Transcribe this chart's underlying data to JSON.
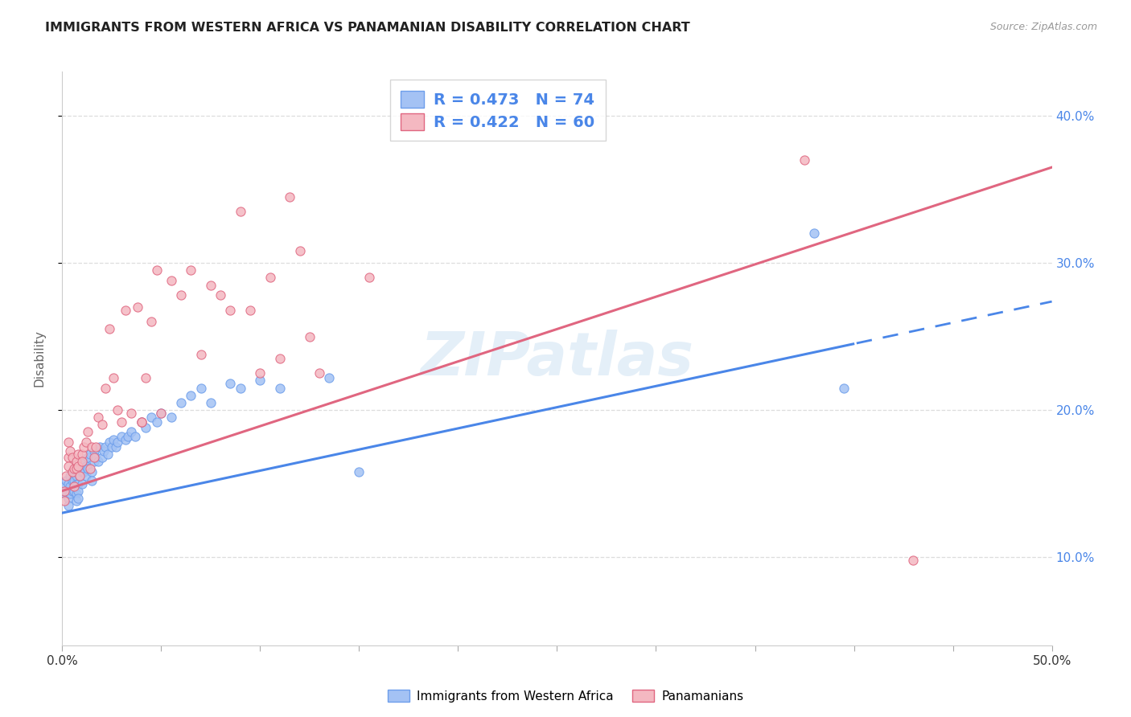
{
  "title": "IMMIGRANTS FROM WESTERN AFRICA VS PANAMANIAN DISABILITY CORRELATION CHART",
  "source": "Source: ZipAtlas.com",
  "ylabel": "Disability",
  "xmin": 0.0,
  "xmax": 0.5,
  "ymin": 0.04,
  "ymax": 0.43,
  "yticks": [
    0.1,
    0.2,
    0.3,
    0.4
  ],
  "ytick_labels": [
    "10.0%",
    "20.0%",
    "30.0%",
    "40.0%"
  ],
  "blue_R": 0.473,
  "blue_N": 74,
  "pink_R": 0.422,
  "pink_N": 60,
  "blue_color": "#a4c2f4",
  "pink_color": "#f4b8c1",
  "blue_edge_color": "#6d9eeb",
  "pink_edge_color": "#e06680",
  "blue_line_color": "#4a86e8",
  "pink_line_color": "#e06680",
  "right_axis_color": "#4a86e8",
  "watermark": "ZIPatlas",
  "blue_points_x": [
    0.001,
    0.001,
    0.002,
    0.002,
    0.003,
    0.003,
    0.003,
    0.004,
    0.004,
    0.004,
    0.005,
    0.005,
    0.005,
    0.006,
    0.006,
    0.006,
    0.006,
    0.007,
    0.007,
    0.007,
    0.007,
    0.008,
    0.008,
    0.008,
    0.009,
    0.009,
    0.01,
    0.01,
    0.011,
    0.011,
    0.012,
    0.012,
    0.013,
    0.013,
    0.014,
    0.015,
    0.015,
    0.016,
    0.016,
    0.017,
    0.018,
    0.019,
    0.02,
    0.021,
    0.022,
    0.023,
    0.024,
    0.025,
    0.026,
    0.027,
    0.028,
    0.03,
    0.032,
    0.033,
    0.035,
    0.037,
    0.04,
    0.042,
    0.045,
    0.048,
    0.05,
    0.055,
    0.06,
    0.065,
    0.07,
    0.075,
    0.085,
    0.09,
    0.1,
    0.11,
    0.135,
    0.15,
    0.38,
    0.395
  ],
  "blue_points_y": [
    0.148,
    0.143,
    0.152,
    0.145,
    0.15,
    0.14,
    0.135,
    0.155,
    0.148,
    0.143,
    0.158,
    0.152,
    0.145,
    0.148,
    0.155,
    0.152,
    0.145,
    0.15,
    0.143,
    0.138,
    0.155,
    0.15,
    0.145,
    0.14,
    0.16,
    0.155,
    0.158,
    0.15,
    0.165,
    0.158,
    0.162,
    0.155,
    0.168,
    0.16,
    0.17,
    0.158,
    0.152,
    0.172,
    0.165,
    0.168,
    0.165,
    0.175,
    0.168,
    0.172,
    0.175,
    0.17,
    0.178,
    0.175,
    0.18,
    0.175,
    0.178,
    0.182,
    0.18,
    0.182,
    0.185,
    0.182,
    0.192,
    0.188,
    0.195,
    0.192,
    0.198,
    0.195,
    0.205,
    0.21,
    0.215,
    0.205,
    0.218,
    0.215,
    0.22,
    0.215,
    0.222,
    0.158,
    0.32,
    0.215
  ],
  "pink_points_x": [
    0.001,
    0.001,
    0.002,
    0.003,
    0.003,
    0.003,
    0.004,
    0.005,
    0.005,
    0.006,
    0.006,
    0.007,
    0.007,
    0.008,
    0.008,
    0.009,
    0.01,
    0.01,
    0.011,
    0.012,
    0.013,
    0.014,
    0.015,
    0.016,
    0.017,
    0.018,
    0.02,
    0.022,
    0.024,
    0.026,
    0.028,
    0.03,
    0.032,
    0.035,
    0.038,
    0.04,
    0.042,
    0.045,
    0.048,
    0.05,
    0.055,
    0.06,
    0.065,
    0.07,
    0.075,
    0.08,
    0.085,
    0.09,
    0.095,
    0.1,
    0.105,
    0.11,
    0.115,
    0.12,
    0.125,
    0.13,
    0.155,
    0.04,
    0.375,
    0.43
  ],
  "pink_points_y": [
    0.145,
    0.138,
    0.155,
    0.168,
    0.162,
    0.178,
    0.172,
    0.168,
    0.158,
    0.16,
    0.148,
    0.165,
    0.16,
    0.17,
    0.162,
    0.155,
    0.17,
    0.165,
    0.175,
    0.178,
    0.185,
    0.16,
    0.175,
    0.168,
    0.175,
    0.195,
    0.19,
    0.215,
    0.255,
    0.222,
    0.2,
    0.192,
    0.268,
    0.198,
    0.27,
    0.192,
    0.222,
    0.26,
    0.295,
    0.198,
    0.288,
    0.278,
    0.295,
    0.238,
    0.285,
    0.278,
    0.268,
    0.335,
    0.268,
    0.225,
    0.29,
    0.235,
    0.345,
    0.308,
    0.25,
    0.225,
    0.29,
    0.192,
    0.37,
    0.098
  ]
}
